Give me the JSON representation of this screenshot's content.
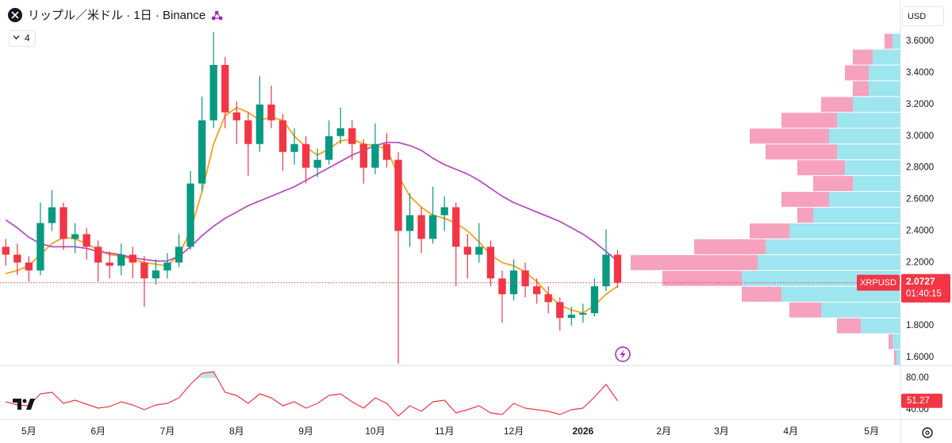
{
  "header": {
    "title": "リップル／米ドル · 1日 · Binance",
    "indicators_count": "4",
    "currency": "USD"
  },
  "chart_data": [
    {
      "type": "candlestick",
      "categories": [
        null,
        null,
        "5月",
        null,
        null,
        null,
        null,
        null,
        "6月",
        null,
        null,
        null,
        null,
        null,
        "7月",
        null,
        null,
        null,
        null,
        null,
        "8月",
        null,
        null,
        null,
        null,
        null,
        "9月",
        null,
        null,
        null,
        null,
        null,
        "10月",
        null,
        null,
        null,
        null,
        null,
        "11月",
        null,
        null,
        null,
        null,
        null,
        "12月",
        null,
        null,
        null,
        null,
        null,
        "2026",
        null,
        null,
        null,
        null,
        null,
        null,
        "2月",
        null,
        null,
        null,
        null,
        "3月",
        null,
        null,
        null,
        null,
        null,
        "4月",
        null,
        null,
        null,
        null,
        null,
        null,
        "5月",
        null,
        null
      ],
      "open": [
        2.3,
        2.25,
        2.2,
        2.15,
        2.45,
        2.55,
        2.35,
        2.38,
        2.3,
        2.2,
        2.18,
        2.25,
        2.2,
        2.1,
        2.15,
        2.2,
        2.3,
        2.7,
        3.1,
        3.45,
        3.15,
        3.1,
        2.95,
        3.2,
        3.1,
        2.9,
        2.95,
        2.8,
        2.85,
        3,
        3.05,
        2.95,
        2.8,
        2.95,
        2.85,
        2.4,
        2.5,
        2.35,
        2.5,
        2.55,
        2.3,
        2.25,
        2.3,
        2.1,
        2,
        2.15,
        2.05,
        2,
        1.95,
        1.85,
        1.87,
        1.88,
        2.05,
        2.25,
        null,
        null,
        null,
        null,
        null,
        null,
        null,
        null,
        null,
        null,
        null,
        null,
        null,
        null,
        null,
        null,
        null,
        null,
        null,
        null,
        null,
        null,
        null,
        null
      ],
      "high": [
        2.35,
        2.32,
        2.24,
        2.58,
        2.66,
        2.58,
        2.45,
        2.42,
        2.34,
        2.27,
        2.32,
        2.3,
        2.24,
        2.22,
        2.26,
        2.38,
        2.78,
        3.25,
        3.66,
        3.5,
        3.22,
        3.15,
        3.38,
        3.32,
        3.14,
        3.05,
        3,
        2.92,
        3.1,
        3.18,
        3.1,
        2.98,
        3.08,
        3.02,
        2.9,
        2.64,
        2.55,
        2.68,
        2.62,
        2.58,
        2.38,
        2.45,
        2.34,
        2.15,
        2.22,
        2.2,
        2.1,
        2.05,
        1.98,
        1.92,
        1.94,
        2.1,
        2.41,
        2.28,
        null,
        null,
        null,
        null,
        null,
        null,
        null,
        null,
        null,
        null,
        null,
        null,
        null,
        null,
        null,
        null,
        null,
        null,
        null,
        null,
        null,
        null,
        null,
        null
      ],
      "low": [
        2.18,
        2.12,
        2.08,
        2.12,
        2.4,
        2.28,
        2.26,
        2.22,
        2.08,
        2.1,
        2.12,
        2.1,
        1.92,
        2.06,
        2.1,
        2.17,
        2.28,
        2.65,
        3.05,
        3.05,
        2.95,
        2.75,
        2.9,
        3.05,
        2.78,
        2.82,
        2.7,
        2.74,
        2.82,
        2.95,
        2.85,
        2.7,
        2.76,
        2.8,
        1.56,
        2.3,
        2.26,
        2.32,
        2.4,
        2.05,
        2.1,
        2.2,
        2.05,
        1.82,
        1.96,
        1.98,
        1.94,
        1.88,
        1.77,
        1.8,
        1.82,
        1.86,
        2.02,
        2.04,
        null,
        null,
        null,
        null,
        null,
        null,
        null,
        null,
        null,
        null,
        null,
        null,
        null,
        null,
        null,
        null,
        null,
        null,
        null,
        null,
        null,
        null,
        null,
        null
      ],
      "close": [
        2.25,
        2.2,
        2.15,
        2.45,
        2.55,
        2.35,
        2.38,
        2.3,
        2.2,
        2.18,
        2.25,
        2.2,
        2.1,
        2.15,
        2.2,
        2.3,
        2.7,
        3.1,
        3.45,
        3.15,
        3.1,
        2.95,
        3.2,
        3.1,
        2.9,
        2.95,
        2.8,
        2.85,
        3,
        3.05,
        2.95,
        2.8,
        2.95,
        2.85,
        2.4,
        2.5,
        2.35,
        2.5,
        2.55,
        2.3,
        2.25,
        2.3,
        2.1,
        2,
        2.15,
        2.05,
        2,
        1.95,
        1.85,
        1.87,
        1.88,
        2.05,
        2.25,
        2.0727,
        null,
        null,
        null,
        null,
        null,
        null,
        null,
        null,
        null,
        null,
        null,
        null,
        null,
        null,
        null,
        null,
        null,
        null,
        null,
        null,
        null,
        null,
        null,
        null
      ],
      "up_color": "#089981",
      "down_color": "#f23645",
      "series": [
        {
          "color": "#f7a21b",
          "values": [
            2.13,
            2.15,
            2.18,
            2.25,
            2.32,
            2.36,
            2.35,
            2.32,
            2.28,
            2.25,
            2.24,
            2.22,
            2.2,
            2.19,
            2.18,
            2.25,
            2.4,
            2.65,
            2.95,
            3.13,
            3.18,
            3.15,
            3.1,
            3.12,
            3.1,
            3,
            2.93,
            2.88,
            2.92,
            2.97,
            2.98,
            2.95,
            2.94,
            2.92,
            2.75,
            2.62,
            2.55,
            2.5,
            2.48,
            2.45,
            2.4,
            2.33,
            2.25,
            2.2,
            2.18,
            2.14,
            2.08,
            2,
            1.93,
            1.9,
            1.88,
            1.93,
            2,
            2.05,
            null,
            null,
            null,
            null,
            null,
            null,
            null,
            null,
            null,
            null,
            null,
            null,
            null,
            null,
            null,
            null,
            null,
            null,
            null,
            null,
            null,
            null,
            null,
            null
          ]
        },
        {
          "color": "#b84fc4",
          "values": [
            2.47,
            2.42,
            2.36,
            2.32,
            2.3,
            2.3,
            2.3,
            2.29,
            2.27,
            2.26,
            2.25,
            2.23,
            2.22,
            2.21,
            2.21,
            2.24,
            2.3,
            2.37,
            2.43,
            2.48,
            2.52,
            2.56,
            2.59,
            2.62,
            2.65,
            2.68,
            2.72,
            2.76,
            2.8,
            2.84,
            2.88,
            2.91,
            2.94,
            2.96,
            2.96,
            2.94,
            2.91,
            2.86,
            2.82,
            2.79,
            2.76,
            2.72,
            2.67,
            2.62,
            2.58,
            2.55,
            2.52,
            2.49,
            2.46,
            2.42,
            2.38,
            2.33,
            2.27,
            2.21,
            null,
            null,
            null,
            null,
            null,
            null,
            null,
            null,
            null,
            null,
            null,
            null,
            null,
            null,
            null,
            null,
            null,
            null,
            null,
            null,
            null,
            null,
            null,
            null
          ]
        }
      ],
      "volume_profile": {
        "up_color": "#4dd0e1",
        "down_color": "#f06292",
        "levels": [
          {
            "price": 3.6,
            "up": 10,
            "down": 10
          },
          {
            "price": 3.5,
            "up": 35,
            "down": 25
          },
          {
            "price": 3.4,
            "up": 40,
            "down": 30
          },
          {
            "price": 3.3,
            "up": 40,
            "down": 20
          },
          {
            "price": 3.2,
            "up": 60,
            "down": 40
          },
          {
            "price": 3.1,
            "up": 80,
            "down": 70
          },
          {
            "price": 3.0,
            "up": 90,
            "down": 100
          },
          {
            "price": 2.9,
            "up": 80,
            "down": 90
          },
          {
            "price": 2.8,
            "up": 70,
            "down": 60
          },
          {
            "price": 2.7,
            "up": 60,
            "down": 50
          },
          {
            "price": 2.6,
            "up": 90,
            "down": 60
          },
          {
            "price": 2.5,
            "up": 110,
            "down": 20
          },
          {
            "price": 2.4,
            "up": 140,
            "down": 50
          },
          {
            "price": 2.3,
            "up": 170,
            "down": 90
          },
          {
            "price": 2.2,
            "up": 180,
            "down": 160
          },
          {
            "price": 2.1,
            "up": 200,
            "down": 100
          },
          {
            "price": 2.0,
            "up": 150,
            "down": 50
          },
          {
            "price": 1.9,
            "up": 100,
            "down": 40
          },
          {
            "price": 1.8,
            "up": 50,
            "down": 30
          },
          {
            "price": 1.7,
            "up": 10,
            "down": 5
          },
          {
            "price": 1.6,
            "up": 5,
            "down": 3
          }
        ]
      },
      "last_price": {
        "symbol": "XRPUSD",
        "countdown": "01:40:15",
        "color": "#f23645"
      },
      "ylim": [
        1.555,
        3.836
      ],
      "yticks": [
        {
          "value": 1.6,
          "label": "1.6000"
        },
        {
          "value": 1.8,
          "label": "1.8000"
        },
        {
          "value": 2.2,
          "label": "2.2000"
        },
        {
          "value": 2.4,
          "label": "2.4000"
        },
        {
          "value": 2.6,
          "label": "2.6000"
        },
        {
          "value": 2.8,
          "label": "2.8000"
        },
        {
          "value": 3.0,
          "label": "3.0000"
        },
        {
          "value": 3.2,
          "label": "3.2000"
        },
        {
          "value": 3.4,
          "label": "3.4000"
        },
        {
          "value": 3.6,
          "label": "3.6000"
        }
      ],
      "grid": false
    },
    {
      "type": "line",
      "color": "#f23645",
      "fill_color": "#089981",
      "values": [
        50,
        46,
        45,
        60,
        62,
        48,
        52,
        47,
        42,
        44,
        50,
        46,
        40,
        46,
        48,
        55,
        72,
        86,
        88,
        62,
        58,
        48,
        60,
        55,
        45,
        50,
        42,
        48,
        58,
        60,
        50,
        42,
        55,
        48,
        32,
        45,
        38,
        50,
        52,
        36,
        40,
        45,
        36,
        34,
        48,
        42,
        40,
        38,
        34,
        40,
        42,
        56,
        72,
        51.27,
        null,
        null,
        null,
        null,
        null,
        null,
        null,
        null,
        null,
        null,
        null,
        null,
        null,
        null,
        null,
        null,
        null,
        null,
        null,
        null,
        null,
        null,
        null,
        null
      ],
      "ylim": [
        29,
        94
      ],
      "yticks": [
        {
          "value": 80,
          "label": "80.00"
        },
        {
          "value": 40,
          "label": "40.00"
        }
      ],
      "grid": false
    }
  ]
}
